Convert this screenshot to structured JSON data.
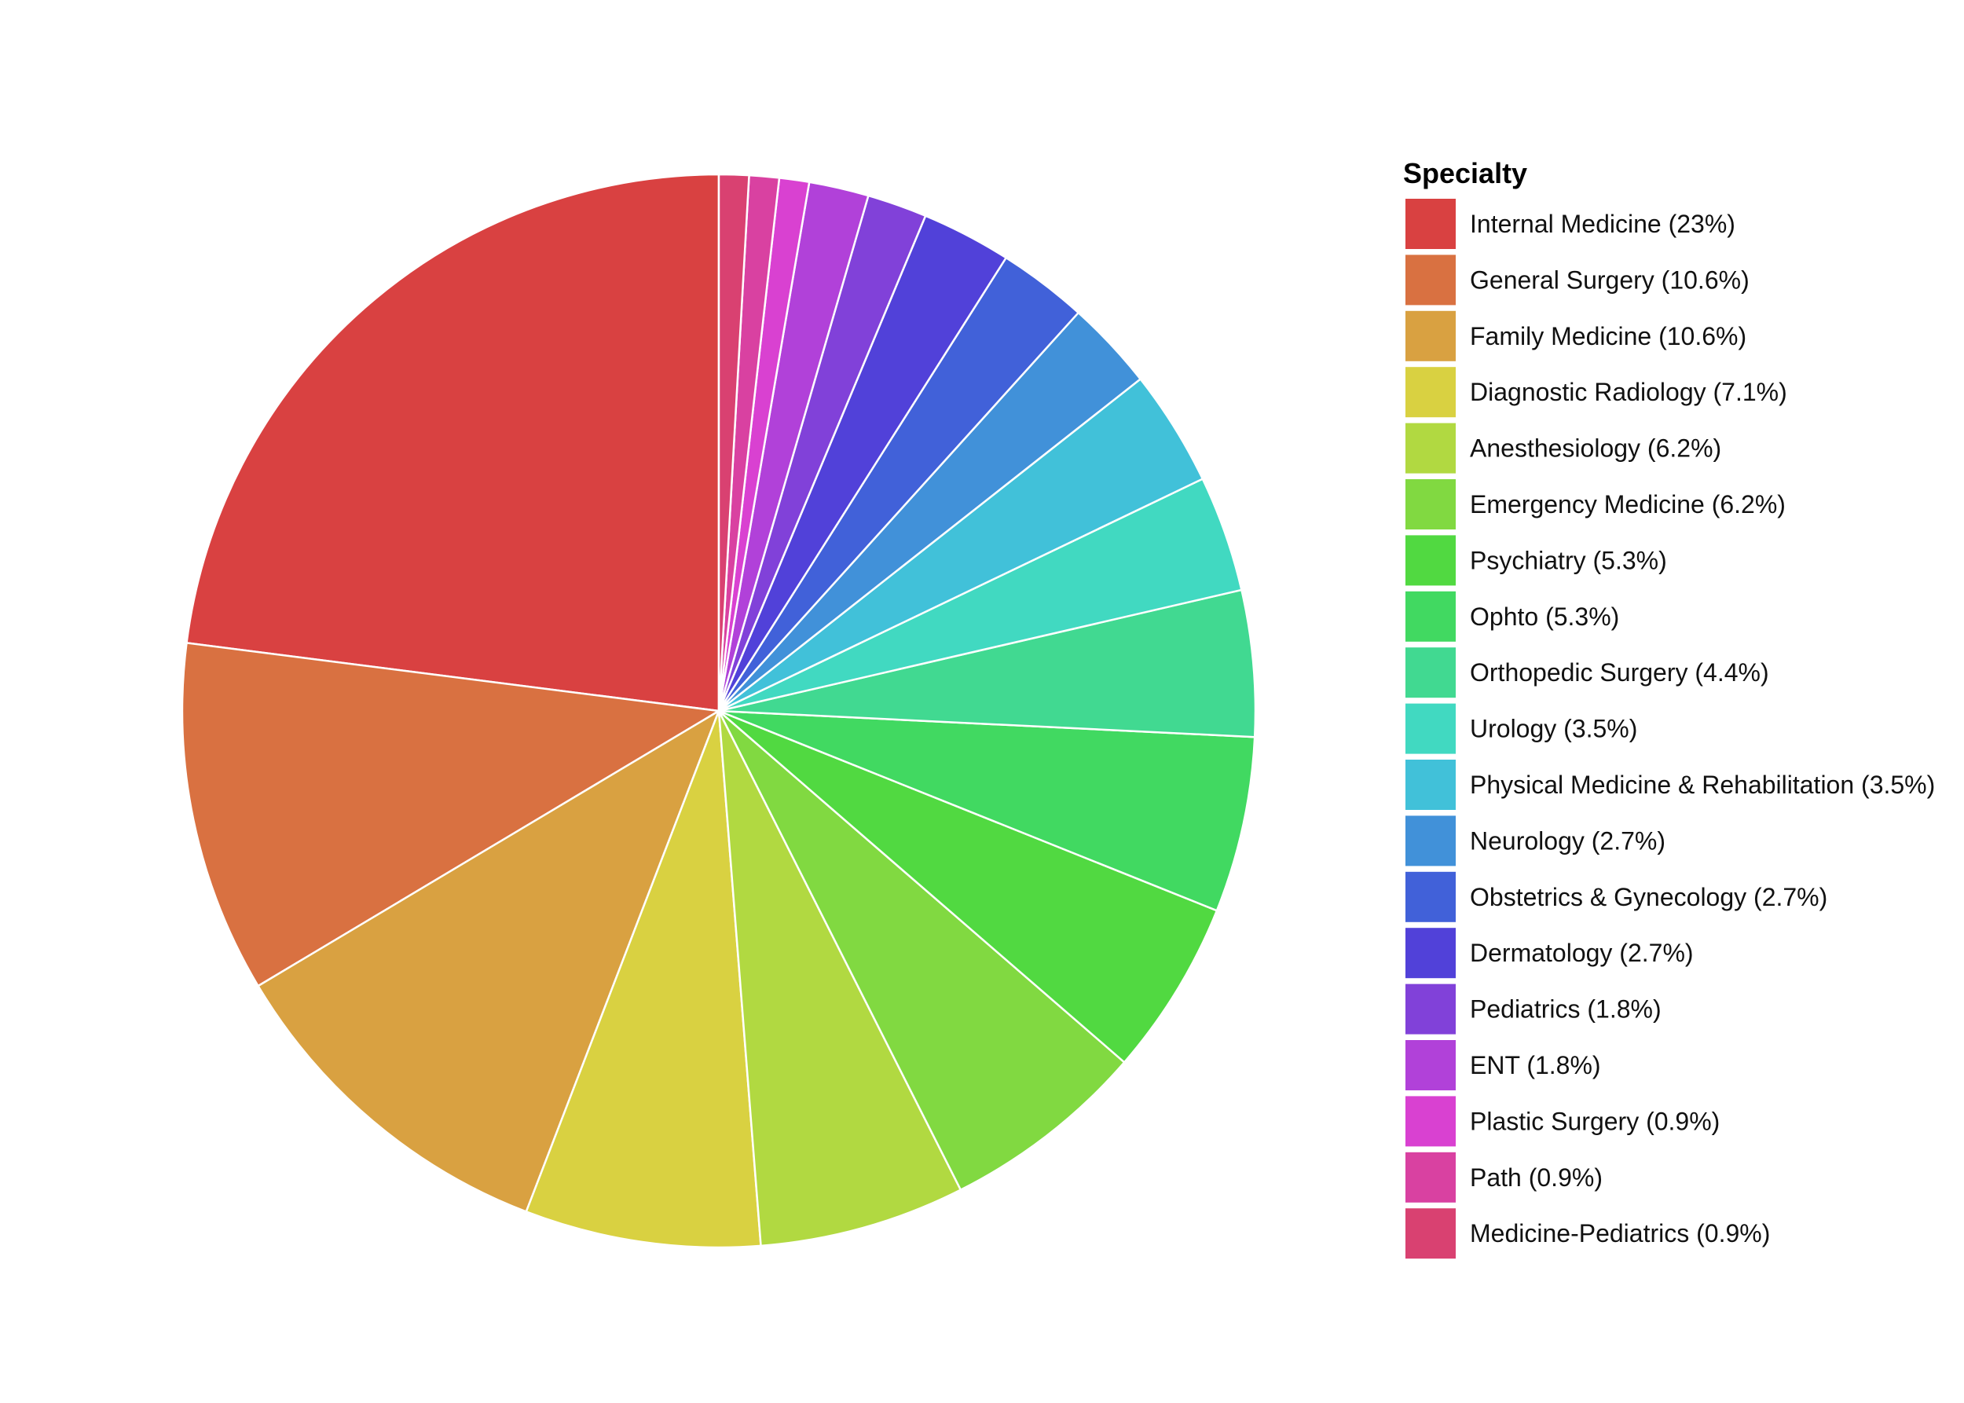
{
  "chart_data": {
    "type": "pie",
    "legend_title": "Specialty",
    "legend_position": "right",
    "start_angle": "12 o'clock",
    "direction": "counterclockwise",
    "slice_border_color": "#ffffff",
    "slices": [
      {
        "label": "Internal Medicine (23%)",
        "value": 23.0,
        "color": "#D94141"
      },
      {
        "label": "General Surgery (10.6%)",
        "value": 10.6,
        "color": "#D97141"
      },
      {
        "label": "Family Medicine (10.6%)",
        "value": 10.6,
        "color": "#D9A141"
      },
      {
        "label": "Diagnostic Radiology (7.1%)",
        "value": 7.1,
        "color": "#D9D141"
      },
      {
        "label": "Anesthesiology (6.2%)",
        "value": 6.2,
        "color": "#B1D941"
      },
      {
        "label": "Emergency Medicine (6.2%)",
        "value": 6.2,
        "color": "#81D941"
      },
      {
        "label": "Psychiatry (5.3%)",
        "value": 5.3,
        "color": "#51D941"
      },
      {
        "label": "Ophto (5.3%)",
        "value": 5.3,
        "color": "#41D961"
      },
      {
        "label": "Orthopedic Surgery (4.4%)",
        "value": 4.4,
        "color": "#41D991"
      },
      {
        "label": "Urology (3.5%)",
        "value": 3.5,
        "color": "#41D9C1"
      },
      {
        "label": "Physical Medicine & Rehabilitation (3.5%)",
        "value": 3.5,
        "color": "#41C1D9"
      },
      {
        "label": "Neurology (2.7%)",
        "value": 2.7,
        "color": "#4191D9"
      },
      {
        "label": "Obstetrics & Gynecology (2.7%)",
        "value": 2.7,
        "color": "#4161D9"
      },
      {
        "label": "Dermatology (2.7%)",
        "value": 2.7,
        "color": "#5141D9"
      },
      {
        "label": "Pediatrics (1.8%)",
        "value": 1.8,
        "color": "#8141D9"
      },
      {
        "label": "ENT (1.8%)",
        "value": 1.8,
        "color": "#B141D9"
      },
      {
        "label": "Plastic Surgery (0.9%)",
        "value": 0.9,
        "color": "#D941D1"
      },
      {
        "label": "Path (0.9%)",
        "value": 0.9,
        "color": "#D941A1"
      },
      {
        "label": "Medicine-Pediatrics (0.9%)",
        "value": 0.9,
        "color": "#D94171"
      }
    ]
  }
}
